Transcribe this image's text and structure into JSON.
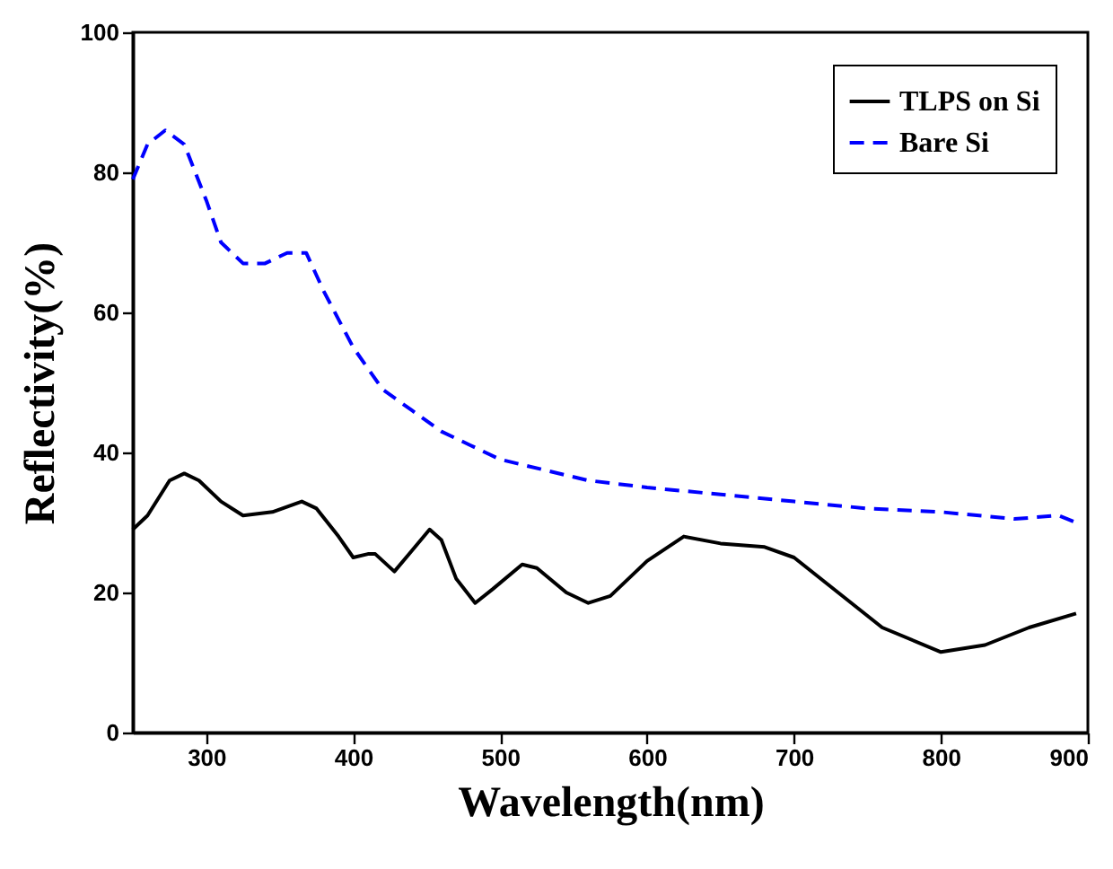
{
  "chart_data": {
    "type": "line",
    "xlabel": "Wavelength(nm)",
    "ylabel": "Reflectivity(%)",
    "xlim": [
      250,
      900
    ],
    "xticks": [
      300,
      400,
      500,
      600,
      700,
      800,
      900
    ],
    "ylim": [
      0,
      100
    ],
    "yticks": [
      0,
      20,
      40,
      60,
      80,
      100
    ],
    "grid": false,
    "legend": "top right",
    "series": [
      {
        "name": "TLPS on Si",
        "color": "#000000",
        "line_style": "solid",
        "x": [
          250,
          260,
          275,
          285,
          295,
          310,
          325,
          345,
          365,
          375,
          390,
          400,
          410,
          415,
          428,
          440,
          452,
          460,
          470,
          483,
          495,
          515,
          525,
          545,
          560,
          575,
          600,
          625,
          650,
          680,
          700,
          730,
          760,
          800,
          830,
          860,
          892
        ],
        "values": [
          29,
          31,
          36,
          37,
          36,
          33,
          31,
          31.5,
          33,
          32,
          28,
          25,
          25.5,
          25.5,
          23,
          26,
          29,
          27.5,
          22,
          18.5,
          20.5,
          24,
          23.5,
          20,
          18.5,
          19.5,
          24.5,
          28,
          27,
          26.5,
          25,
          20,
          15,
          11.5,
          12.5,
          15,
          17
        ]
      },
      {
        "name": "Bare Si",
        "color": "#0000ff",
        "line_style": "dashed",
        "x": [
          250,
          260,
          272,
          285,
          300,
          310,
          325,
          340,
          355,
          368,
          380,
          400,
          420,
          440,
          460,
          480,
          500,
          530,
          560,
          600,
          650,
          700,
          750,
          800,
          850,
          880,
          892
        ],
        "values": [
          79,
          84,
          86,
          84,
          76,
          70,
          67,
          67,
          68.5,
          68.5,
          63,
          55,
          49,
          46,
          43,
          41,
          39,
          37.5,
          36,
          35,
          34,
          33,
          32,
          31.5,
          30.5,
          31,
          30
        ]
      }
    ]
  }
}
